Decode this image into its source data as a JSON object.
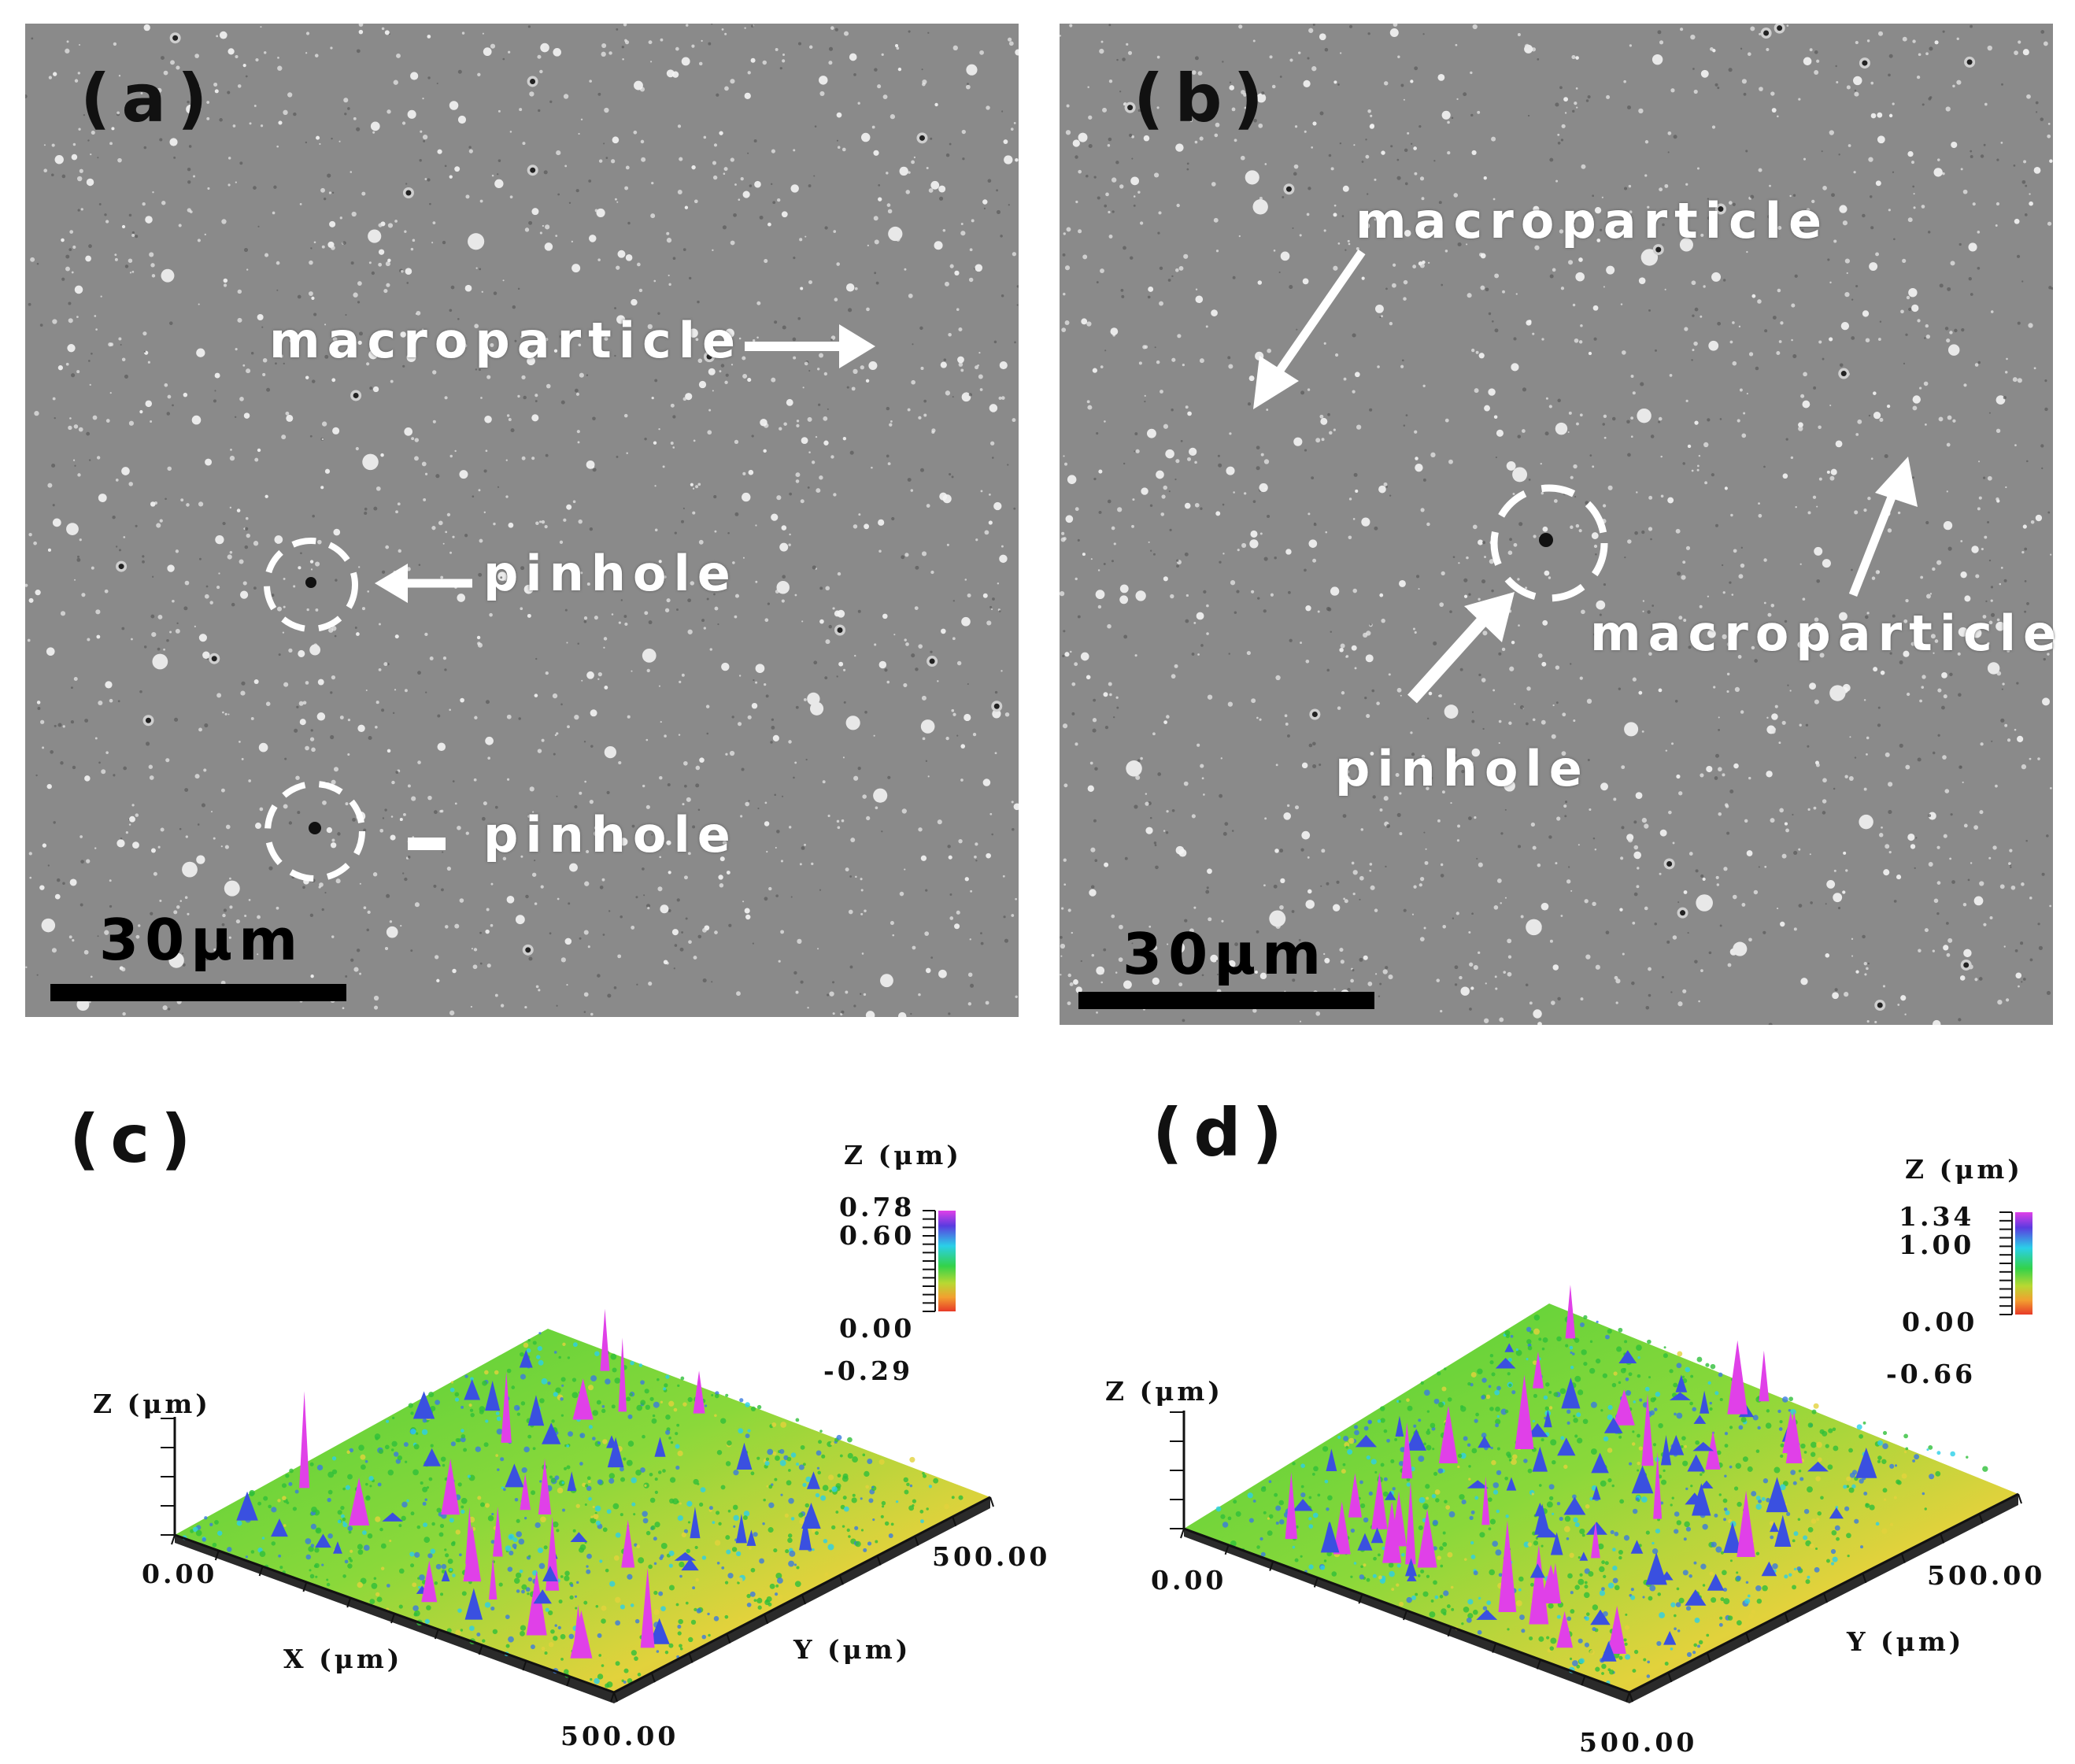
{
  "panels": {
    "a": {
      "tag": "(a)",
      "scale_bar": "30μm",
      "labels": {
        "macroparticle": "macroparticle",
        "pinhole_1": "pinhole",
        "pinhole_2": "pinhole"
      }
    },
    "b": {
      "tag": "(b)",
      "scale_bar": "30μm",
      "labels": {
        "macroparticle_1": "macroparticle",
        "macroparticle_2": "macroparticle",
        "pinhole": "pinhole"
      }
    },
    "c": {
      "tag": "(c)",
      "colorbar_title": "Z (μm)",
      "colorbar_ticks": [
        "0.78",
        "0.60",
        "0.00",
        "-0.29"
      ],
      "z_axis_label": "Z (μm)",
      "origin_label": "0.00",
      "x_axis_label": "X (μm)",
      "x_end_label": "500.00",
      "y_axis_label": "Y (μm)",
      "y_end_label": "500.00"
    },
    "d": {
      "tag": "(d)",
      "colorbar_title": "Z (μm)",
      "colorbar_ticks": [
        "1.34",
        "1.00",
        "0.00",
        "-0.66"
      ],
      "z_axis_label": "Z (μm)",
      "origin_label": "0.00",
      "y_axis_label": "Y (μm)",
      "x_end_label": "500.00",
      "y_end_label": "500.00"
    }
  },
  "colors": {
    "sem_background": "#8a8a8a",
    "surface_green": "#5ed23c",
    "surface_yellow": "#e8d23a",
    "peak_magenta": "#e040e8",
    "peak_blue": "#3a50e0"
  }
}
